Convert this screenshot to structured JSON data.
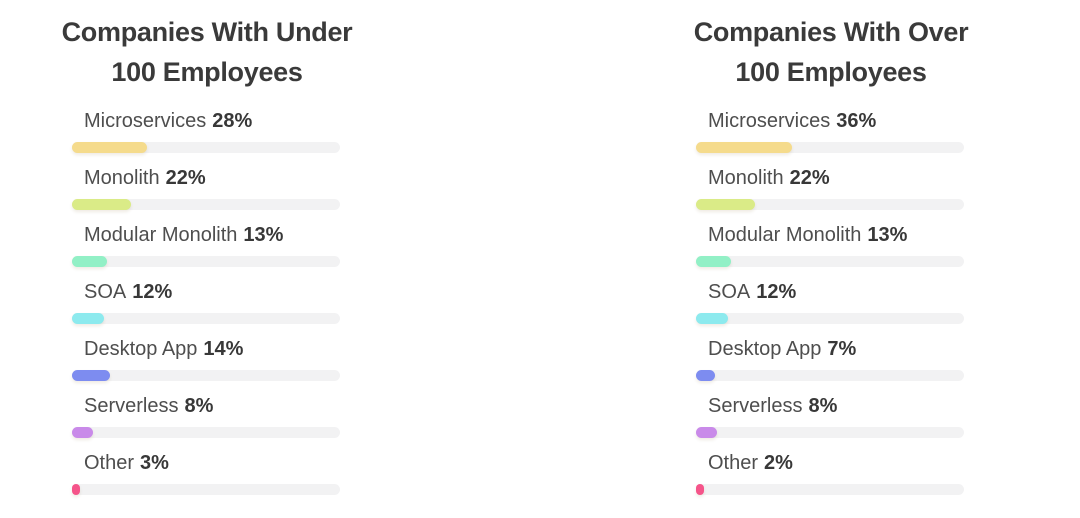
{
  "chart_data": {
    "type": "bar",
    "orientation": "horizontal",
    "categories": [
      "Microservices",
      "Monolith",
      "Modular Monolith",
      "SOA",
      "Desktop App",
      "Serverless",
      "Other"
    ],
    "series": [
      {
        "name": "Companies With Under 100 Employees",
        "values": [
          28,
          22,
          13,
          12,
          14,
          8,
          3
        ]
      },
      {
        "name": "Companies With Over 100 Employees",
        "values": [
          36,
          22,
          13,
          12,
          7,
          8,
          2
        ]
      }
    ],
    "unit": "%",
    "value_range": [
      0,
      100
    ],
    "grid": false,
    "legend_position": "none",
    "value_labels_inline": true,
    "bar_colors": [
      "#F5DB8C",
      "#DAEB87",
      "#92F0C6",
      "#8DEAEE",
      "#7D8CF0",
      "#C98AE9",
      "#F5548A"
    ]
  },
  "style": {
    "track_color": "#f2f2f3",
    "title_color": "#3a3a3a",
    "label_color": "#4e4e4e",
    "background": "#ffffff"
  },
  "panels": [
    {
      "title_line1": "Companies With Under",
      "title_line2": "100 Employees",
      "rows": [
        {
          "label": "Microservices",
          "value_label": "28%",
          "percent": 28,
          "color": "#F5DB8C"
        },
        {
          "label": "Monolith",
          "value_label": "22%",
          "percent": 22,
          "color": "#DAEB87"
        },
        {
          "label": "Modular Monolith",
          "value_label": "13%",
          "percent": 13,
          "color": "#92F0C6"
        },
        {
          "label": "SOA",
          "value_label": "12%",
          "percent": 12,
          "color": "#8DEAEE"
        },
        {
          "label": "Desktop App",
          "value_label": "14%",
          "percent": 14,
          "color": "#7D8CF0"
        },
        {
          "label": "Serverless",
          "value_label": "8%",
          "percent": 8,
          "color": "#C98AE9"
        },
        {
          "label": "Other",
          "value_label": "3%",
          "percent": 3,
          "color": "#F5548A"
        }
      ]
    },
    {
      "title_line1": "Companies With Over",
      "title_line2": "100 Employees",
      "rows": [
        {
          "label": "Microservices",
          "value_label": "36%",
          "percent": 36,
          "color": "#F5DB8C"
        },
        {
          "label": "Monolith",
          "value_label": "22%",
          "percent": 22,
          "color": "#DAEB87"
        },
        {
          "label": "Modular Monolith",
          "value_label": "13%",
          "percent": 13,
          "color": "#92F0C6"
        },
        {
          "label": "SOA",
          "value_label": "12%",
          "percent": 12,
          "color": "#8DEAEE"
        },
        {
          "label": "Desktop App",
          "value_label": "7%",
          "percent": 7,
          "color": "#7D8CF0"
        },
        {
          "label": "Serverless",
          "value_label": "8%",
          "percent": 8,
          "color": "#C98AE9"
        },
        {
          "label": "Other",
          "value_label": "2%",
          "percent": 2,
          "color": "#F5548A"
        }
      ]
    }
  ]
}
